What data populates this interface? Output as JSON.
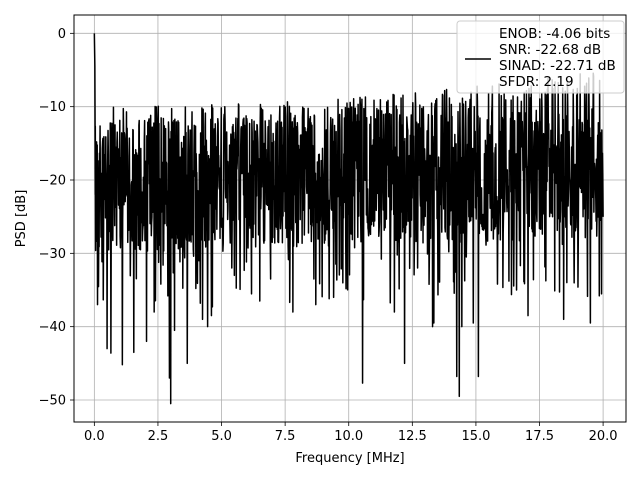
{
  "chart_data": {
    "type": "line",
    "title": "",
    "xlabel": "Frequency [MHz]",
    "ylabel": "PSD [dB]",
    "xlim": [
      -0.8,
      20.9
    ],
    "ylim": [
      -53,
      2.5
    ],
    "xticks": [
      0.0,
      2.5,
      5.0,
      7.5,
      10.0,
      12.5,
      15.0,
      17.5,
      20.0
    ],
    "xtick_labels": [
      "0.0",
      "2.5",
      "5.0",
      "7.5",
      "10.0",
      "12.5",
      "15.0",
      "17.5",
      "20.0"
    ],
    "yticks": [
      0,
      -10,
      -20,
      -30,
      -40,
      -50
    ],
    "ytick_labels": [
      "0",
      "−10",
      "−20",
      "−30",
      "−40",
      "−50"
    ],
    "grid": true,
    "legend": {
      "placement": "top-right",
      "entries": [
        "ENOB: -4.06 bits",
        "SNR: -22.68 dB",
        "SINAD: -22.71 dB",
        "SFDR: 2.19"
      ]
    },
    "series": [
      {
        "name": "ENOB: -4.06 bits\nSNR: -22.68 dB\nSINAD: -22.71 dB\nSFDR: 2.19",
        "color": "#000000",
        "x_range": [
          0,
          20
        ],
        "n_points": 1600,
        "noise_floor": {
          "center_low_freq": -21,
          "center_high_freq": -19,
          "typical_spread": 9,
          "upper_envelope": -10,
          "upper_envelope_high_freq": -5
        },
        "peaks": [
          {
            "x": 0.0,
            "y": 0.0
          },
          {
            "x": 0.02,
            "y": -4.5
          }
        ],
        "notable_minima": [
          {
            "x": 0.12,
            "y": -37
          },
          {
            "x": 0.5,
            "y": -43
          },
          {
            "x": 0.65,
            "y": -43.6
          },
          {
            "x": 1.1,
            "y": -45.2
          },
          {
            "x": 1.55,
            "y": -43.5
          },
          {
            "x": 2.05,
            "y": -42
          },
          {
            "x": 2.35,
            "y": -38
          },
          {
            "x": 2.95,
            "y": -47
          },
          {
            "x": 3.0,
            "y": -50.5
          },
          {
            "x": 3.15,
            "y": -40.5
          },
          {
            "x": 3.65,
            "y": -45
          },
          {
            "x": 4.25,
            "y": -39
          },
          {
            "x": 4.45,
            "y": -40
          },
          {
            "x": 4.6,
            "y": -38.5
          },
          {
            "x": 5.5,
            "y": -33
          },
          {
            "x": 6.5,
            "y": -36.5
          },
          {
            "x": 7.8,
            "y": -38
          },
          {
            "x": 8.7,
            "y": -37
          },
          {
            "x": 9.4,
            "y": -36
          },
          {
            "x": 10.55,
            "y": -47.7
          },
          {
            "x": 11.8,
            "y": -38
          },
          {
            "x": 12.2,
            "y": -45
          },
          {
            "x": 13.3,
            "y": -40
          },
          {
            "x": 13.35,
            "y": -39.5
          },
          {
            "x": 14.25,
            "y": -46.8
          },
          {
            "x": 14.35,
            "y": -49.5
          },
          {
            "x": 14.45,
            "y": -40
          },
          {
            "x": 14.9,
            "y": -39.5
          },
          {
            "x": 15.1,
            "y": -46.8
          },
          {
            "x": 16.6,
            "y": -35
          },
          {
            "x": 17.05,
            "y": -38.5
          },
          {
            "x": 18.45,
            "y": -39
          },
          {
            "x": 19.5,
            "y": -39.5
          }
        ]
      }
    ]
  }
}
